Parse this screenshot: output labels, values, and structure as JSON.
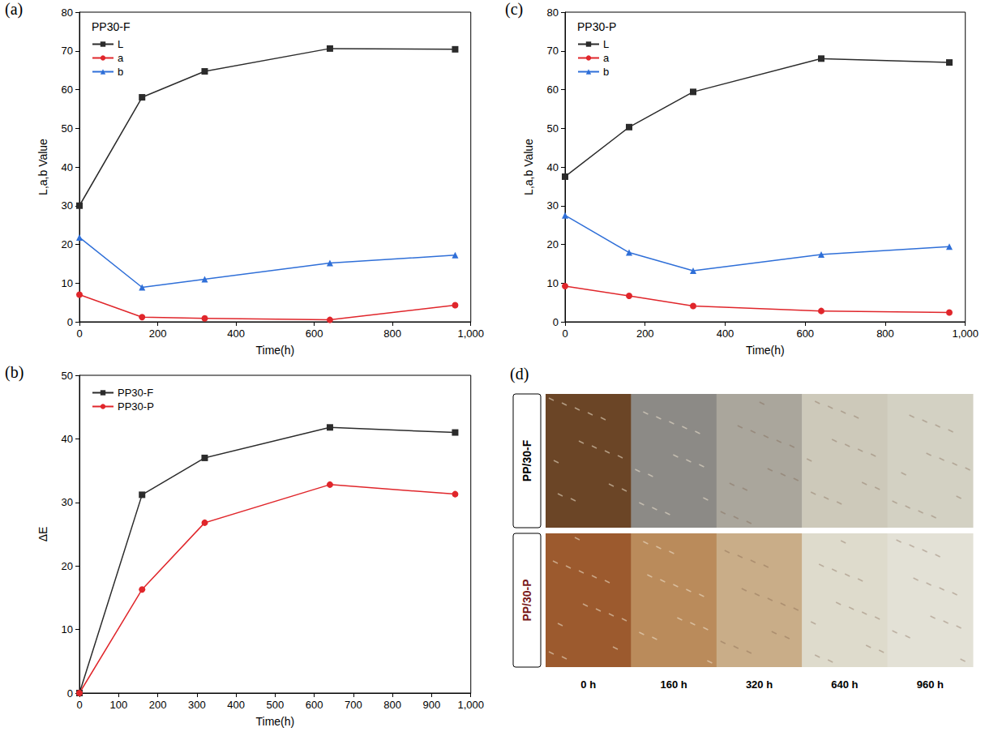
{
  "chart_data": [
    {
      "type": "line",
      "title": "(a)",
      "subtitle": "PP30-F",
      "x_label": "Time(h)",
      "y_label": "L,a,b Value",
      "x": [
        0,
        160,
        320,
        640,
        960
      ],
      "series": [
        {
          "name": "L",
          "color": "#2b2b2b",
          "marker": "square",
          "line_style": "solid",
          "values": [
            30,
            58,
            64.7,
            70.6,
            70.4
          ]
        },
        {
          "name": "a",
          "color": "#e0262b",
          "marker": "circle",
          "line_style": "solid",
          "values": [
            7,
            1.2,
            0.9,
            0.5,
            4.3
          ]
        },
        {
          "name": "b",
          "color": "#2f6fd8",
          "marker": "triangle",
          "line_style": "solid",
          "values": [
            21.8,
            8.9,
            11,
            15.2,
            17.2
          ]
        }
      ],
      "xlim": [
        0,
        1000
      ],
      "xticks": [
        0,
        200,
        400,
        600,
        800,
        1000
      ],
      "ylim": [
        0,
        80
      ],
      "yticks": [
        0,
        10,
        20,
        30,
        40,
        50,
        60,
        70,
        80
      ],
      "grid": false,
      "legend": "upper left"
    },
    {
      "type": "line",
      "title": "(b)",
      "x_label": "Time(h)",
      "y_label": "ΔE",
      "x": [
        0,
        160,
        320,
        640,
        960
      ],
      "series": [
        {
          "name": "PP30-F",
          "color": "#2b2b2b",
          "marker": "square",
          "line_style": "solid",
          "values": [
            0,
            31.2,
            37,
            41.8,
            41
          ]
        },
        {
          "name": "PP30-P",
          "color": "#e0262b",
          "marker": "circle",
          "line_style": "solid",
          "values": [
            0,
            16.3,
            26.8,
            32.8,
            31.3
          ]
        }
      ],
      "xlim": [
        0,
        1000
      ],
      "xticks": [
        0,
        100,
        200,
        300,
        400,
        500,
        600,
        700,
        800,
        900,
        1000
      ],
      "ylim": [
        0,
        50
      ],
      "yticks": [
        0,
        10,
        20,
        30,
        40,
        50
      ],
      "grid": false,
      "legend": "upper left"
    },
    {
      "type": "line",
      "title": "(c)",
      "subtitle": "PP30-P",
      "x_label": "Time(h)",
      "y_label": "L,a,b Value",
      "x": [
        0,
        160,
        320,
        640,
        960
      ],
      "series": [
        {
          "name": "L",
          "color": "#2b2b2b",
          "marker": "square",
          "line_style": "solid",
          "values": [
            37.5,
            50.3,
            59.4,
            68,
            67
          ]
        },
        {
          "name": "a",
          "color": "#e0262b",
          "marker": "circle",
          "line_style": "solid",
          "values": [
            9.2,
            6.7,
            4.1,
            2.8,
            2.4
          ]
        },
        {
          "name": "b",
          "color": "#2f6fd8",
          "marker": "triangle",
          "line_style": "solid",
          "values": [
            27.5,
            17.9,
            13.2,
            17.4,
            19.4
          ]
        }
      ],
      "xlim": [
        0,
        1000
      ],
      "xticks": [
        0,
        200,
        400,
        600,
        800,
        1000
      ],
      "ylim": [
        0,
        80
      ],
      "yticks": [
        0,
        10,
        20,
        30,
        40,
        50,
        60,
        70,
        80
      ],
      "grid": false,
      "legend": "upper left"
    }
  ],
  "panel_d": {
    "label": "(d)",
    "rows": [
      "PP/30-F",
      "PP/30-P"
    ],
    "columns": [
      "0 h",
      "160 h",
      "320 h",
      "640 h",
      "960 h"
    ]
  }
}
